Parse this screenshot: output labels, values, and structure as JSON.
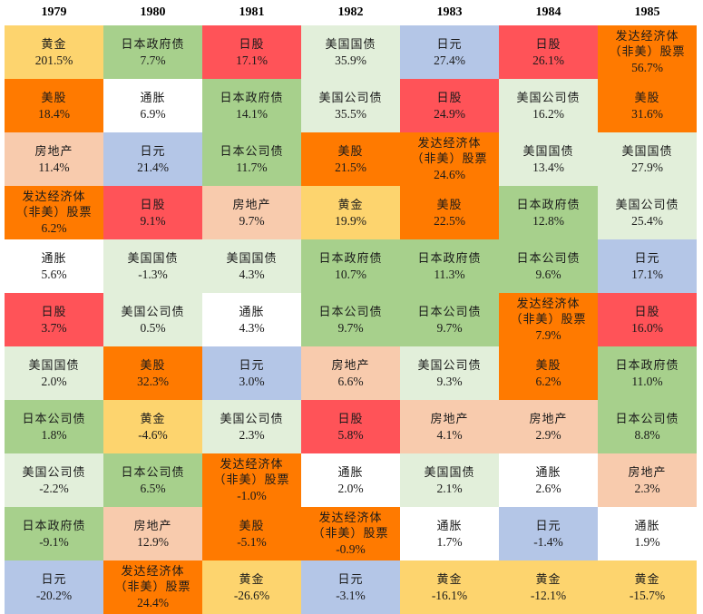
{
  "chart_data": {
    "type": "table",
    "title": "",
    "years": [
      "1979",
      "1980",
      "1981",
      "1982",
      "1983",
      "1984",
      "1985"
    ],
    "colors": {
      "黄金": "#FDD46E",
      "日本政府债": "#A7D08C",
      "日股": "#FF5358",
      "美国国债": "#E2EFDA",
      "日元": "#B4C6E7",
      "发达经济体\n（非美）股票": "#FF7A00",
      "美股": "#FF7A00",
      "通胀": "#FFFFFF",
      "美国公司债": "#E2EFDA",
      "房地产": "#F8CBAD",
      "日本公司债": "#A7D08C"
    },
    "columns": [
      [
        {
          "label": "黄金",
          "value": "201.5%"
        },
        {
          "label": "美股",
          "value": "18.4%"
        },
        {
          "label": "房地产",
          "value": "11.4%"
        },
        {
          "label": "发达经济体\n（非美）股票",
          "value": "6.2%"
        },
        {
          "label": "通胀",
          "value": "5.6%"
        },
        {
          "label": "日股",
          "value": "3.7%"
        },
        {
          "label": "美国国债",
          "value": "2.0%"
        },
        {
          "label": "日本公司债",
          "value": "1.8%"
        },
        {
          "label": "美国公司债",
          "value": "-2.2%"
        },
        {
          "label": "日本政府债",
          "value": "-9.1%"
        },
        {
          "label": "日元",
          "value": "-20.2%"
        }
      ],
      [
        {
          "label": "日本政府债",
          "value": "7.7%"
        },
        {
          "label": "通胀",
          "value": "6.9%"
        },
        {
          "label": "日元",
          "value": "21.4%"
        },
        {
          "label": "日股",
          "value": "9.1%"
        },
        {
          "label": "美国国债",
          "value": "-1.3%"
        },
        {
          "label": "美国公司债",
          "value": "0.5%"
        },
        {
          "label": "美股",
          "value": "32.3%"
        },
        {
          "label": "黄金",
          "value": "-4.6%"
        },
        {
          "label": "日本公司债",
          "value": "6.5%"
        },
        {
          "label": "房地产",
          "value": "12.9%"
        },
        {
          "label": "发达经济体\n（非美）股票",
          "value": "24.4%"
        }
      ],
      [
        {
          "label": "日股",
          "value": "17.1%"
        },
        {
          "label": "日本政府债",
          "value": "14.1%"
        },
        {
          "label": "日本公司债",
          "value": "11.7%"
        },
        {
          "label": "房地产",
          "value": "9.7%"
        },
        {
          "label": "美国国债",
          "value": "4.3%"
        },
        {
          "label": "通胀",
          "value": "4.3%"
        },
        {
          "label": "日元",
          "value": "3.0%"
        },
        {
          "label": "美国公司债",
          "value": "2.3%"
        },
        {
          "label": "发达经济体\n（非美）股票",
          "value": "-1.0%"
        },
        {
          "label": "美股",
          "value": "-5.1%"
        },
        {
          "label": "黄金",
          "value": "-26.6%"
        }
      ],
      [
        {
          "label": "美国国债",
          "value": "35.9%"
        },
        {
          "label": "美国公司债",
          "value": "35.5%"
        },
        {
          "label": "美股",
          "value": "21.5%"
        },
        {
          "label": "黄金",
          "value": "19.9%"
        },
        {
          "label": "日本政府债",
          "value": "10.7%"
        },
        {
          "label": "日本公司债",
          "value": "9.7%"
        },
        {
          "label": "房地产",
          "value": "6.6%"
        },
        {
          "label": "日股",
          "value": "5.8%"
        },
        {
          "label": "通胀",
          "value": "2.0%"
        },
        {
          "label": "发达经济体\n（非美）股票",
          "value": "-0.9%"
        },
        {
          "label": "日元",
          "value": "-3.1%"
        }
      ],
      [
        {
          "label": "日元",
          "value": "27.4%"
        },
        {
          "label": "日股",
          "value": "24.9%"
        },
        {
          "label": "发达经济体\n（非美）股票",
          "value": "24.6%"
        },
        {
          "label": "美股",
          "value": "22.5%"
        },
        {
          "label": "日本政府债",
          "value": "11.3%"
        },
        {
          "label": "日本公司债",
          "value": "9.7%"
        },
        {
          "label": "美国公司债",
          "value": "9.3%"
        },
        {
          "label": "房地产",
          "value": "4.1%"
        },
        {
          "label": "美国国债",
          "value": "2.1%"
        },
        {
          "label": "通胀",
          "value": "1.7%"
        },
        {
          "label": "黄金",
          "value": "-16.1%"
        }
      ],
      [
        {
          "label": "日股",
          "value": "26.1%"
        },
        {
          "label": "美国公司债",
          "value": "16.2%"
        },
        {
          "label": "美国国债",
          "value": "13.4%"
        },
        {
          "label": "日本政府债",
          "value": "12.8%"
        },
        {
          "label": "日本公司债",
          "value": "9.6%"
        },
        {
          "label": "发达经济体\n（非美）股票",
          "value": "7.9%"
        },
        {
          "label": "美股",
          "value": "6.2%"
        },
        {
          "label": "房地产",
          "value": "2.9%"
        },
        {
          "label": "通胀",
          "value": "2.6%"
        },
        {
          "label": "日元",
          "value": "-1.4%"
        },
        {
          "label": "黄金",
          "value": "-12.1%"
        }
      ],
      [
        {
          "label": "发达经济体\n（非美）股票",
          "value": "56.7%"
        },
        {
          "label": "美股",
          "value": "31.6%"
        },
        {
          "label": "美国国债",
          "value": "27.9%"
        },
        {
          "label": "美国公司债",
          "value": "25.4%"
        },
        {
          "label": "日元",
          "value": "17.1%"
        },
        {
          "label": "日股",
          "value": "16.0%"
        },
        {
          "label": "日本政府债",
          "value": "11.0%"
        },
        {
          "label": "日本公司债",
          "value": "8.8%"
        },
        {
          "label": "房地产",
          "value": "2.3%"
        },
        {
          "label": "通胀",
          "value": "1.9%"
        },
        {
          "label": "黄金",
          "value": "-15.7%"
        }
      ]
    ]
  }
}
